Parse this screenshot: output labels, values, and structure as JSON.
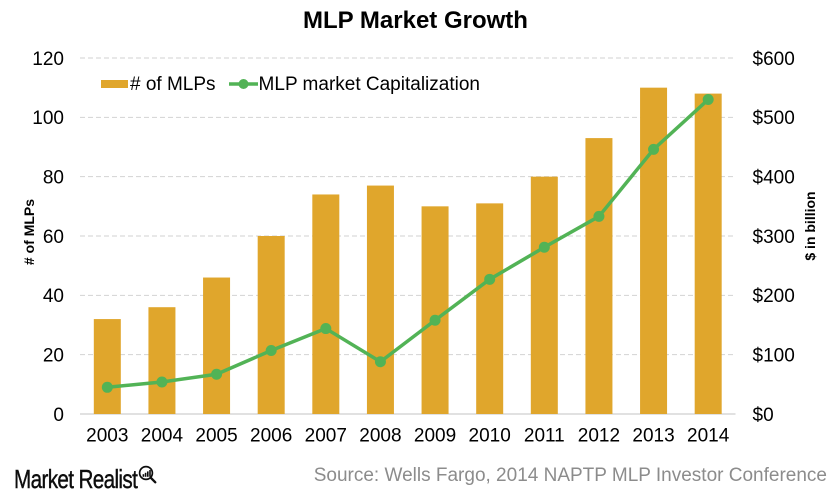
{
  "title": "MLP Market Growth",
  "legend": {
    "bars_label": "# of MLPs",
    "line_label": "MLP market Capitalization"
  },
  "left_axis": {
    "title": "# of MLPs",
    "ticks": [
      "0",
      "20",
      "40",
      "60",
      "80",
      "100",
      "120"
    ]
  },
  "right_axis": {
    "title": "$ in billion",
    "ticks": [
      "$0",
      "$100",
      "$200",
      "$300",
      "$400",
      "$500",
      "$600"
    ]
  },
  "footer": {
    "brand": "Market Realist",
    "brand_icon": "magnifier-chart-icon",
    "source": "Source: Wells Fargo, 2014 NAPTP MLP Investor Conference"
  },
  "colors": {
    "bar": "#E0A62C",
    "line": "#52B356",
    "grid": "#D2D2D2",
    "axis": "#CFCFCF",
    "text": "#000000",
    "source_text": "#8C8C8C"
  },
  "chart_data": {
    "type": "bar",
    "title": "MLP Market Growth",
    "categories": [
      "2003",
      "2004",
      "2005",
      "2006",
      "2007",
      "2008",
      "2009",
      "2010",
      "2011",
      "2012",
      "2013",
      "2014"
    ],
    "series": [
      {
        "name": "# of MLPs",
        "type": "bar",
        "axis": "left",
        "values": [
          32,
          36,
          46,
          60,
          74,
          77,
          70,
          71,
          80,
          93,
          110,
          108
        ]
      },
      {
        "name": "MLP market Capitalization",
        "type": "line",
        "axis": "right",
        "values": [
          45,
          54,
          67,
          107,
          144,
          88,
          158,
          227,
          281,
          333,
          446,
          530
        ]
      }
    ],
    "xlabel": "",
    "ylabel_left": "# of MLPs",
    "ylabel_right": "$ in billion",
    "left_ylim": [
      0,
      120
    ],
    "left_step": 20,
    "right_ylim": [
      0,
      600
    ],
    "right_step": 100,
    "grid": "horizontal-dashed",
    "legend_position": "top-left-inside"
  }
}
